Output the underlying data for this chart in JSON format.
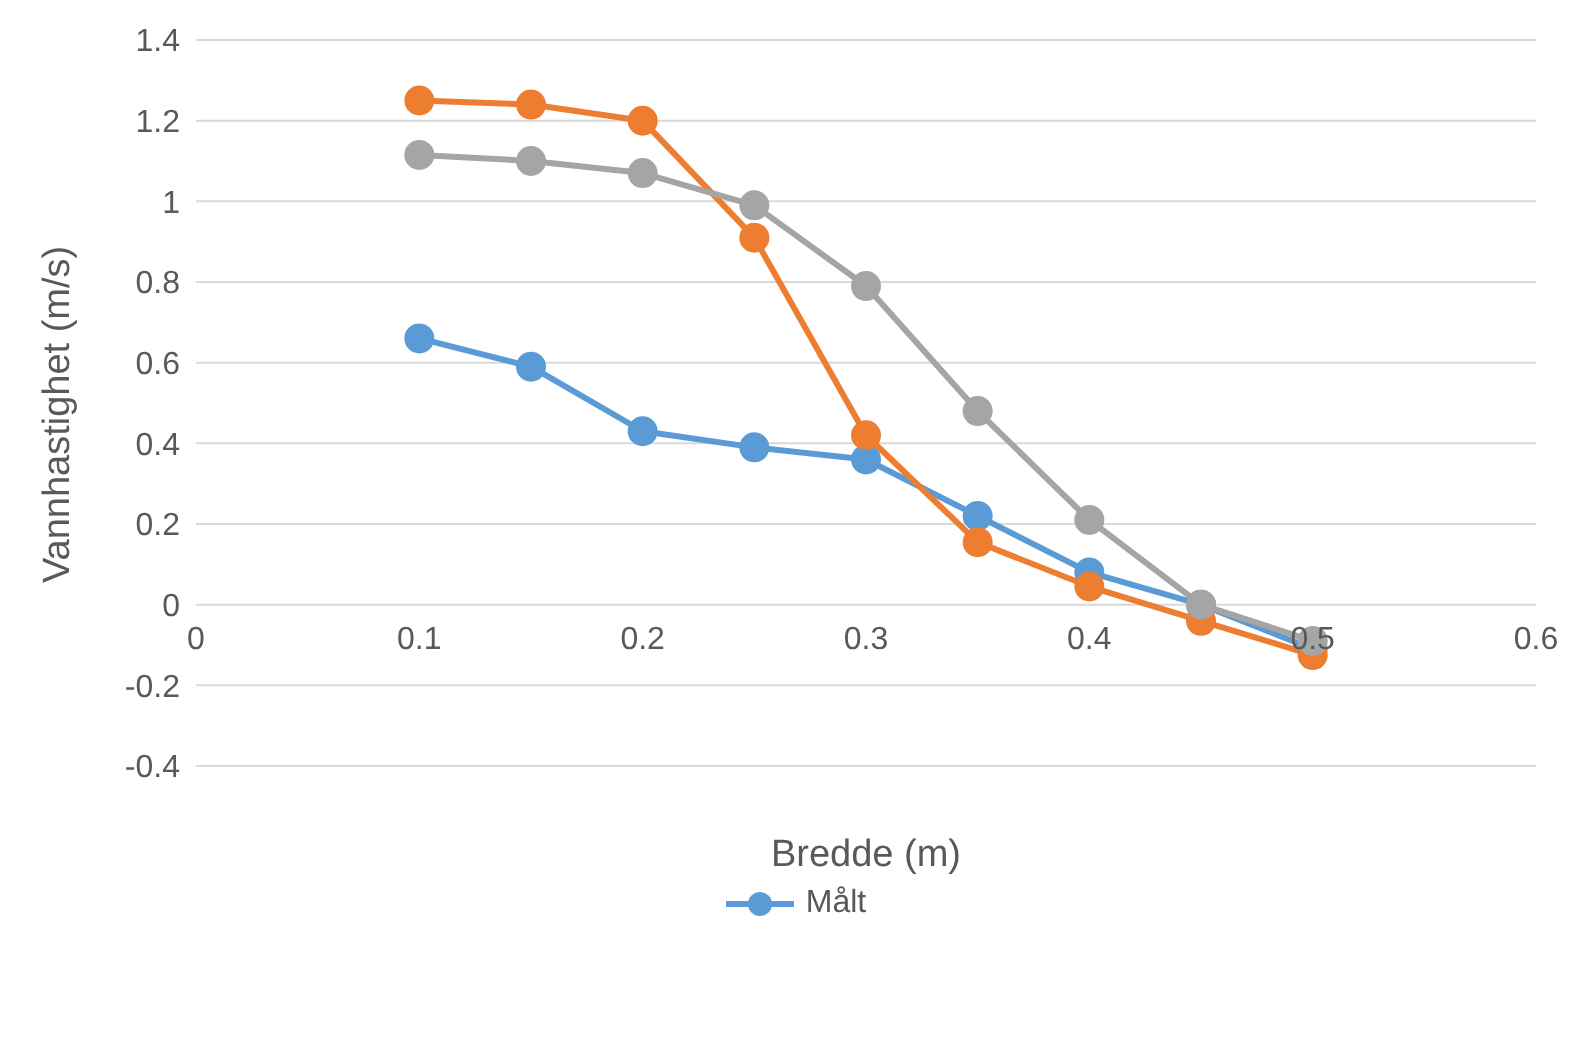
{
  "chart_data": {
    "type": "line",
    "xlabel": "Bredde (m)",
    "ylabel": "Vannhastighet (m/s)",
    "x": [
      0.1,
      0.15,
      0.2,
      0.25,
      0.3,
      0.35,
      0.4,
      0.45,
      0.5
    ],
    "series": [
      {
        "name": "Målt",
        "color": "#5b9bd5",
        "values": [
          0.66,
          0.59,
          0.43,
          0.39,
          0.36,
          0.22,
          0.08,
          0.0,
          -0.11
        ]
      },
      {
        "color": "#ed7d31",
        "values": [
          1.25,
          1.24,
          1.2,
          0.91,
          0.42,
          0.155,
          0.045,
          -0.04,
          -0.125
        ]
      },
      {
        "color": "#a5a5a5",
        "values": [
          1.115,
          1.1,
          1.07,
          0.99,
          0.79,
          0.48,
          0.21,
          0.0,
          -0.09
        ]
      }
    ],
    "xlim": [
      0,
      0.6
    ],
    "xticks": [
      0,
      0.1,
      0.2,
      0.3,
      0.4,
      0.5,
      0.6
    ],
    "ylim": [
      -0.4,
      1.4
    ],
    "yticks": [
      -0.4,
      -0.2,
      0,
      0.2,
      0.4,
      0.6,
      0.8,
      1,
      1.2,
      1.4
    ],
    "grid": "y",
    "legend": "bottom",
    "marker": "circle",
    "line_style": "solid"
  }
}
